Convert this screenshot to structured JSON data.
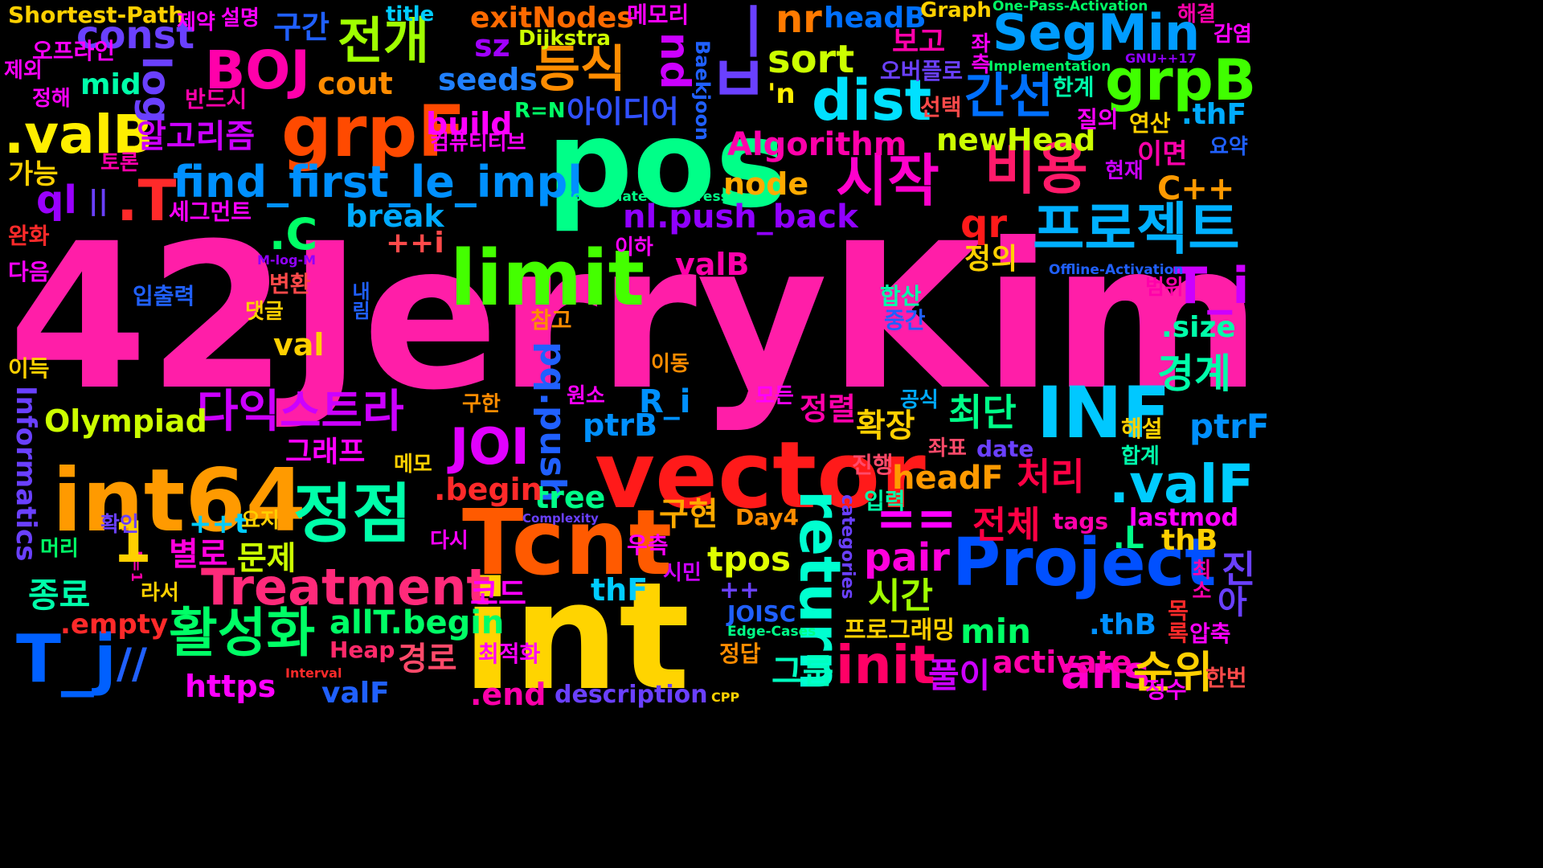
{
  "words": [
    {
      "text": "42JerryKim",
      "color": "#ff1ea8"
    },
    {
      "text": "int",
      "color": "#ffd400"
    },
    {
      "text": "pos",
      "color": "#00ff88"
    },
    {
      "text": "vector",
      "color": "#ff1a1a"
    },
    {
      "text": "Tcnt",
      "color": "#ff5a00"
    },
    {
      "text": "int64",
      "color": "#ff9a00"
    },
    {
      "text": "limit",
      "color": "#44ff00"
    },
    {
      "text": "정점",
      "color": "#00ffaa"
    },
    {
      "text": "grpF",
      "color": "#ff4a00"
    },
    {
      "text": "INF",
      "color": "#00c8ff"
    },
    {
      "text": "Project",
      "color": "#0050ff"
    },
    {
      "text": "Treatment",
      "color": "#ff2a7a"
    },
    {
      "text": "프로젝트",
      "color": "#00b0ff"
    },
    {
      "text": "dist",
      "color": "#00e0ff"
    },
    {
      "text": "SegMin",
      "color": "#009cff"
    },
    {
      "text": "grpB",
      "color": "#40ff00"
    },
    {
      "text": ".valB",
      "color": "#ffee00"
    },
    {
      "text": "BOJ",
      "color": "#ff00aa"
    },
    {
      "text": "시작",
      "color": "#ff00cc"
    },
    {
      "text": "비용",
      "color": "#ff1a6a"
    },
    {
      "text": "return",
      "color": "#00ffd0"
    },
    {
      "text": "활성화",
      "color": "#00ff66"
    },
    {
      "text": "다익스트라",
      "color": "#cc00ff"
    },
    {
      "text": "find_first_le_impl",
      "color": "#0090ff"
    },
    {
      "text": ".T",
      "color": "#ff2a2a"
    },
    {
      "text": "T_j",
      "color": "#0060ff"
    },
    {
      "text": "전개",
      "color": "#a0ff00"
    },
    {
      "text": "등식",
      "color": "#ff8c00"
    },
    {
      "text": "간선",
      "color": "#0070ff"
    },
    {
      "text": "init",
      "color": "#ff0066"
    },
    {
      "text": ".valF",
      "color": "#00ccff"
    },
    {
      "text": "JOI",
      "color": "#e000ff"
    },
    {
      "text": "T_i",
      "color": "#cc00ff"
    },
    {
      "text": "const",
      "color": "#6a40ff"
    },
    {
      "text": "log",
      "color": "#6a40ff"
    },
    {
      "text": "pq.push",
      "color": "#2060ff"
    },
    {
      "text": "ans",
      "color": "#ff00cc"
    },
    {
      "text": "순위",
      "color": "#ffd000"
    },
    {
      "text": "경계",
      "color": "#00ffaa"
    },
    {
      "text": "nr",
      "color": "#ff7a00"
    },
    {
      "text": "sort",
      "color": "#ccff00"
    },
    {
      "text": "pair",
      "color": "#ff00dd"
    },
    {
      "text": "==",
      "color": "#ff00ff"
    },
    {
      "text": ".C",
      "color": "#00ff66"
    },
    {
      "text": "qr",
      "color": "#ff1a1a"
    },
    {
      "text": "ql",
      "color": "#9a00ff"
    },
    {
      "text": "nl.push_back",
      "color": "#9000ff"
    },
    {
      "text": "Algorithm",
      "color": "#ff00aa"
    },
    {
      "text": "headB",
      "color": "#0070ff"
    },
    {
      "text": "exitNodes",
      "color": "#ff6a00"
    },
    {
      "text": "seeds",
      "color": "#2080ff"
    },
    {
      "text": "cout",
      "color": "#ff8c00"
    },
    {
      "text": "build",
      "color": "#ff00ff"
    },
    {
      "text": "mid",
      "color": "#00ffaa"
    },
    {
      "text": "sz",
      "color": "#a000ff"
    },
    {
      "text": "알고리즘",
      "color": "#cc00ff"
    },
    {
      "text": "아이디어",
      "color": "#3050ff"
    },
    {
      "text": "구현",
      "color": "#ffaa00"
    },
    {
      "text": "tpos",
      "color": "#e0ff00"
    },
    {
      "text": "최단",
      "color": "#00ff88"
    },
    {
      "text": "전체",
      "color": "#ff0044"
    },
    {
      "text": "처리",
      "color": "#ff0044"
    },
    {
      "text": "headF",
      "color": "#ff9a00"
    },
    {
      "text": "확장",
      "color": "#ffd000"
    },
    {
      "text": "정렬",
      "color": "#ff00aa"
    },
    {
      "text": "시간",
      "color": "#a0ff00"
    },
    {
      "text": "그룹",
      "color": "#00ffc0"
    },
    {
      "text": "풀이",
      "color": "#cc00ff"
    },
    {
      "text": "경로",
      "color": "#ff4a6a"
    },
    {
      "text": "문제",
      "color": "#ccff00"
    },
    {
      "text": "종료",
      "color": "#00ffaa"
    },
    {
      "text": "별로",
      "color": "#ff00dd"
    },
    {
      "text": "코드",
      "color": "#ff00ff"
    },
    {
      "text": "allT.begin",
      "color": "#00ff66"
    },
    {
      "text": "Olympiad",
      "color": "#ccff00"
    },
    {
      "text": "Informatics",
      "color": "#6a40ff"
    },
    {
      "text": "그래프",
      "color": "#ff00ff"
    },
    {
      "text": "newHead",
      "color": "#ccff00"
    },
    {
      "text": "node",
      "color": "#ffaa00"
    },
    {
      "text": "break",
      "color": "#00aaff"
    },
    {
      "text": "++i",
      "color": "#ff4a4a"
    },
    {
      "text": "valB",
      "color": "#ff00aa"
    },
    {
      "text": "val",
      "color": "#ffd000"
    },
    {
      "text": "tree",
      "color": "#00ff88"
    },
    {
      "text": ".begin",
      "color": "#ff2a2a"
    },
    {
      "text": "ptrB",
      "color": "#0090ff"
    },
    {
      "text": "R_i",
      "color": "#0090ff"
    },
    {
      "text": "ptrF",
      "color": "#0090ff"
    },
    {
      "text": ".size",
      "color": "#00ffaa"
    },
    {
      "text": "C++",
      "color": "#ff9a00"
    },
    {
      "text": "thB",
      "color": "#ffd000"
    },
    {
      "text": ".L",
      "color": "#00ff88"
    },
    {
      "text": ".thB",
      "color": "#0090ff"
    },
    {
      "text": "min",
      "color": "#00ff66"
    },
    {
      "text": "activate",
      "color": "#ff00aa"
    },
    {
      "text": "thF",
      "color": "#00ccff"
    },
    {
      "text": ".thF",
      "color": "#00aaff"
    },
    {
      "text": "++t",
      "color": "#00ccff"
    },
    {
      "text": "++",
      "color": "#6a40ff"
    },
    {
      "text": ".empty",
      "color": "#ff2a2a"
    },
    {
      "text": "https",
      "color": "#ff00ff"
    },
    {
      "text": "valF",
      "color": "#2060ff"
    },
    {
      "text": ".end",
      "color": "#ff00aa"
    },
    {
      "text": "description",
      "color": "#6a40ff"
    },
    {
      "text": "//",
      "color": "#2060ff"
    },
    {
      "text": "tags",
      "color": "#ff00aa"
    },
    {
      "text": "lastmod",
      "color": "#ff00ff"
    },
    {
      "text": "date",
      "color": "#6a40ff"
    },
    {
      "text": "categories",
      "color": "#6a40ff"
    },
    {
      "text": "JOISC",
      "color": "#2060ff"
    },
    {
      "text": "Day4",
      "color": "#ff8c00"
    },
    {
      "text": "Heap",
      "color": "#ff2a6a"
    },
    {
      "text": "Dijkstra",
      "color": "#ccff00"
    },
    {
      "text": "title",
      "color": "#00ccff"
    },
    {
      "text": "Graph",
      "color": "#ffd000"
    },
    {
      "text": "Baekjoon",
      "color": "#2060ff"
    },
    {
      "text": "R=N",
      "color": "#00ff66"
    },
    {
      "text": "Shortest-Path",
      "color": "#ffd000"
    },
    {
      "text": "One-Pass-Activation",
      "color": "#00ff66"
    },
    {
      "text": "GNU++17",
      "color": "#9000ff"
    },
    {
      "text": "Implementation",
      "color": "#00ff66"
    },
    {
      "text": "Coordinate-Compression",
      "color": "#00ff88"
    },
    {
      "text": "M-log-M",
      "color": "#9000ff"
    },
    {
      "text": "Offline-Activation",
      "color": "#2060ff"
    },
    {
      "text": "Complexity",
      "color": "#6a40ff"
    },
    {
      "text": "Edge-Cases",
      "color": "#00ff88"
    },
    {
      "text": "Interval",
      "color": "#ff2a2a"
    },
    {
      "text": "CPP",
      "color": "#ffd000"
    },
    {
      "text": "L=1",
      "color": "#ff00aa"
    },
    {
      "text": "'n",
      "color": "#ffee00"
    },
    {
      "text": "||",
      "color": "#6a40ff"
    },
    {
      "text": "1",
      "color": "#ffd000"
    },
    {
      "text": "nd",
      "color": "#cc00ff"
    },
    {
      "text": "보고",
      "color": "#ff00aa"
    },
    {
      "text": "좌측",
      "color": "#ff00ff"
    },
    {
      "text": "오버플로",
      "color": "#6a40ff"
    },
    {
      "text": "한계",
      "color": "#00ffaa"
    },
    {
      "text": "선택",
      "color": "#ff4a4a"
    },
    {
      "text": "질의",
      "color": "#ff00ff"
    },
    {
      "text": "연산",
      "color": "#ffd000"
    },
    {
      "text": "이면",
      "color": "#ff00aa"
    },
    {
      "text": "현재",
      "color": "#cc00ff"
    },
    {
      "text": "요약",
      "color": "#2060ff"
    },
    {
      "text": "감염",
      "color": "#ff00ff"
    },
    {
      "text": "해결",
      "color": "#ff00aa"
    },
    {
      "text": "정의",
      "color": "#ffd000"
    },
    {
      "text": "범위",
      "color": "#ff00aa"
    },
    {
      "text": "합산",
      "color": "#00ffaa"
    },
    {
      "text": "중간",
      "color": "#2060ff"
    },
    {
      "text": "공식",
      "color": "#00aaff"
    },
    {
      "text": "해설",
      "color": "#ffd000"
    },
    {
      "text": "합계",
      "color": "#00ffaa"
    },
    {
      "text": "좌표",
      "color": "#ff4a6a"
    },
    {
      "text": "진행",
      "color": "#ff4a6a"
    },
    {
      "text": "입력",
      "color": "#00ffaa"
    },
    {
      "text": "프로그래밍",
      "color": "#ffd000"
    },
    {
      "text": "정답",
      "color": "#ff8c00"
    },
    {
      "text": "최적화",
      "color": "#ff00ff"
    },
    {
      "text": "모든",
      "color": "#ff00ff"
    },
    {
      "text": "원소",
      "color": "#ff00ff"
    },
    {
      "text": "이동",
      "color": "#ff8c00"
    },
    {
      "text": "구한",
      "color": "#ff8c00"
    },
    {
      "text": "메모",
      "color": "#ffd000"
    },
    {
      "text": "다시",
      "color": "#ff00ff"
    },
    {
      "text": "요지",
      "color": "#ffd000"
    },
    {
      "text": "확인",
      "color": "#6a40ff"
    },
    {
      "text": "우측",
      "color": "#ff00ff"
    },
    {
      "text": "시민",
      "color": "#cc00ff"
    },
    {
      "text": "라서",
      "color": "#ffd000"
    },
    {
      "text": "머리",
      "color": "#00ff66"
    },
    {
      "text": "참고",
      "color": "#ff8c00"
    },
    {
      "text": "입출력",
      "color": "#2060ff"
    },
    {
      "text": "댓글",
      "color": "#ffd000"
    },
    {
      "text": "변환",
      "color": "#ff4a4a"
    },
    {
      "text": "내림",
      "color": "#2060ff"
    },
    {
      "text": "이하",
      "color": "#ff00ff"
    },
    {
      "text": "구간",
      "color": "#2060ff"
    },
    {
      "text": "메모리",
      "color": "#ff00ff"
    },
    {
      "text": "설명",
      "color": "#ff00ff"
    },
    {
      "text": "제약",
      "color": "#ff00ff"
    },
    {
      "text": "오프라인",
      "color": "#ff00ff"
    },
    {
      "text": "제외",
      "color": "#ff00ff"
    },
    {
      "text": "정해",
      "color": "#ff00ff"
    },
    {
      "text": "반드시",
      "color": "#ff00aa"
    },
    {
      "text": "컴퓨티티브",
      "color": "#ff00ff"
    },
    {
      "text": "가능",
      "color": "#ffd000"
    },
    {
      "text": "토론",
      "color": "#ff00aa"
    },
    {
      "text": "세그먼트",
      "color": "#ff00ff"
    },
    {
      "text": "완화",
      "color": "#ff2a2a"
    },
    {
      "text": "다음",
      "color": "#ff00ff"
    },
    {
      "text": "이득",
      "color": "#ffd000"
    },
    {
      "text": "진",
      "color": "#6a40ff"
    },
    {
      "text": "아",
      "color": "#6a40ff"
    },
    {
      "text": "최소",
      "color": "#ff00aa"
    },
    {
      "text": "목록",
      "color": "#ff2a2a"
    },
    {
      "text": "압축",
      "color": "#ff00ff"
    },
    {
      "text": "한번",
      "color": "#ff4a4a"
    },
    {
      "text": "정수",
      "color": "#ff00ff"
    },
    {
      "text": "ㅂ",
      "color": "#6a40ff"
    },
    {
      "text": "ㅣ",
      "color": "#6a40ff"
    }
  ]
}
